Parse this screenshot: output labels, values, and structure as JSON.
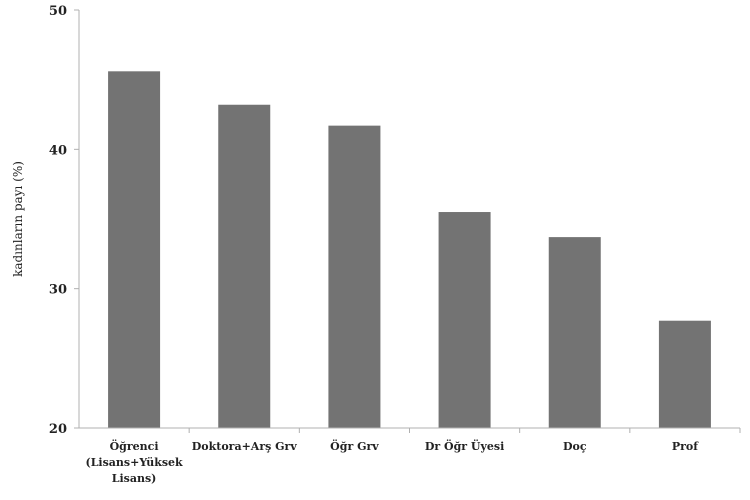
{
  "chart_data": {
    "type": "bar",
    "categories": [
      [
        "Öğrenci",
        "(Lisans+Yüksek",
        "Lisans)"
      ],
      [
        "Doktora+Arş Grv"
      ],
      [
        "Öğr Grv"
      ],
      [
        "Dr Öğr Üyesi"
      ],
      [
        "Doç"
      ],
      [
        "Prof"
      ]
    ],
    "values": [
      45.6,
      43.2,
      41.7,
      35.5,
      33.7,
      27.7
    ],
    "title": "",
    "xlabel": "",
    "ylabel": "kadınların payı (%)",
    "ylim": [
      20,
      50
    ],
    "yticks": [
      20,
      30,
      40,
      50
    ],
    "bar_color": "#737373",
    "grid": false
  }
}
